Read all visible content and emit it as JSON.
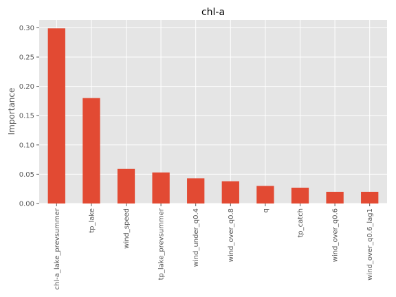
{
  "chart_data": {
    "type": "bar",
    "title": "chl-a",
    "xlabel": "",
    "ylabel": "Importance",
    "categories": [
      "chl-a_lake_prevsummer",
      "tp_lake",
      "wind_speed",
      "tp_lake_prevsummer",
      "wind_under_q0.4",
      "wind_over_q0.8",
      "q",
      "tp_catch",
      "wind_over_q0.6",
      "wind_over_q0.6_lag1"
    ],
    "values": [
      0.299,
      0.18,
      0.059,
      0.053,
      0.043,
      0.038,
      0.03,
      0.027,
      0.02,
      0.02
    ],
    "ylim": [
      0,
      0.3134
    ],
    "yticks": [
      "0.00",
      "0.05",
      "0.10",
      "0.15",
      "0.20",
      "0.25",
      "0.30"
    ],
    "grid": true,
    "colors": {
      "bar": "#E24A33",
      "plot_bg": "#E5E5E5",
      "grid": "#FFFFFF",
      "text": "#555555",
      "title": "#000000"
    }
  }
}
